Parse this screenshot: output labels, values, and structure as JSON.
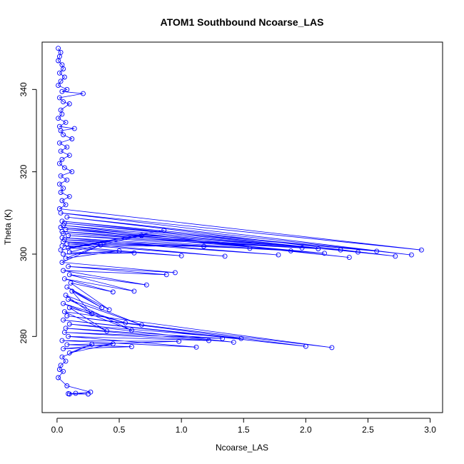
{
  "chart_data": {
    "type": "scatter",
    "title": "ATOM1 Southbound Ncoarse_LAS",
    "xlabel": "Ncoarse_LAS",
    "ylabel": "Theta (K)",
    "xlim": [
      -0.12,
      3.1
    ],
    "ylim": [
      261.5,
      351.5
    ],
    "x_ticks": [
      "0.0",
      "0.5",
      "1.0",
      "1.5",
      "2.0",
      "2.5",
      "3.0"
    ],
    "y_ticks": [
      "280",
      "300",
      "320",
      "340"
    ],
    "series_color": "#0000ff",
    "marker": "open-circle",
    "connected": true,
    "points": [
      [
        0.01,
        350
      ],
      [
        0.03,
        349
      ],
      [
        0.02,
        348
      ],
      [
        0.01,
        347
      ],
      [
        0.04,
        346
      ],
      [
        0.05,
        345
      ],
      [
        0.02,
        344
      ],
      [
        0.06,
        343
      ],
      [
        0.03,
        342
      ],
      [
        0.01,
        341
      ],
      [
        0.08,
        340
      ],
      [
        0.04,
        339.5
      ],
      [
        0.21,
        339
      ],
      [
        0.02,
        338
      ],
      [
        0.05,
        337
      ],
      [
        0.1,
        336.5
      ],
      [
        0.03,
        335
      ],
      [
        0.04,
        334
      ],
      [
        0.01,
        333
      ],
      [
        0.07,
        332
      ],
      [
        0.02,
        331
      ],
      [
        0.14,
        330.5
      ],
      [
        0.03,
        330
      ],
      [
        0.05,
        329
      ],
      [
        0.12,
        328
      ],
      [
        0.02,
        327
      ],
      [
        0.08,
        326
      ],
      [
        0.03,
        325
      ],
      [
        0.1,
        324
      ],
      [
        0.04,
        323
      ],
      [
        0.02,
        322
      ],
      [
        0.06,
        321
      ],
      [
        0.12,
        320
      ],
      [
        0.03,
        319
      ],
      [
        0.08,
        318
      ],
      [
        0.02,
        317
      ],
      [
        0.05,
        316
      ],
      [
        0.03,
        315
      ],
      [
        0.1,
        314
      ],
      [
        0.04,
        313
      ],
      [
        0.07,
        312
      ],
      [
        0.02,
        311
      ],
      [
        2.93,
        301
      ],
      [
        0.03,
        310
      ],
      [
        2.85,
        299.8
      ],
      [
        0.08,
        309
      ],
      [
        2.72,
        299.5
      ],
      [
        0.04,
        308
      ],
      [
        2.57,
        300.7
      ],
      [
        0.06,
        307.5
      ],
      [
        2.42,
        300.5
      ],
      [
        0.05,
        307
      ],
      [
        2.35,
        299.2
      ],
      [
        0.03,
        306.5
      ],
      [
        2.28,
        301
      ],
      [
        0.07,
        306
      ],
      [
        2.15,
        300.2
      ],
      [
        0.04,
        305.5
      ],
      [
        2.1,
        301.3
      ],
      [
        0.05,
        305
      ],
      [
        1.97,
        301.5
      ],
      [
        0.09,
        304.5
      ],
      [
        1.88,
        300.8
      ],
      [
        0.04,
        304
      ],
      [
        1.78,
        299.8
      ],
      [
        0.06,
        303.5
      ],
      [
        1.55,
        301.4
      ],
      [
        0.05,
        303
      ],
      [
        1.35,
        299.5
      ],
      [
        0.08,
        302.5
      ],
      [
        1.18,
        301.9
      ],
      [
        0.04,
        302
      ],
      [
        1.0,
        299.6
      ],
      [
        0.09,
        301.5
      ],
      [
        0.86,
        305.8
      ],
      [
        0.03,
        301
      ],
      [
        0.68,
        304.5
      ],
      [
        0.1,
        300.5
      ],
      [
        0.62,
        300.3
      ],
      [
        0.05,
        300
      ],
      [
        0.5,
        300.8
      ],
      [
        0.07,
        299
      ],
      [
        0.35,
        302.2
      ],
      [
        0.04,
        298
      ],
      [
        0.95,
        295.5
      ],
      [
        0.09,
        297
      ],
      [
        0.88,
        295
      ],
      [
        0.05,
        296
      ],
      [
        0.72,
        292.5
      ],
      [
        0.1,
        295
      ],
      [
        0.62,
        291
      ],
      [
        0.06,
        294
      ],
      [
        0.45,
        290.8
      ],
      [
        0.11,
        293
      ],
      [
        0.42,
        286.5
      ],
      [
        0.08,
        292
      ],
      [
        0.36,
        287
      ],
      [
        0.12,
        291
      ],
      [
        0.28,
        285.5
      ],
      [
        0.07,
        290
      ],
      [
        0.68,
        282.8
      ],
      [
        0.09,
        289
      ],
      [
        0.6,
        281.5
      ],
      [
        0.05,
        288
      ],
      [
        0.55,
        283.3
      ],
      [
        0.1,
        287
      ],
      [
        0.4,
        281.3
      ],
      [
        0.06,
        286
      ],
      [
        2.21,
        277.3
      ],
      [
        0.08,
        285
      ],
      [
        2.0,
        277.6
      ],
      [
        0.05,
        284
      ],
      [
        1.48,
        279.5
      ],
      [
        0.1,
        283
      ],
      [
        1.42,
        278.6
      ],
      [
        0.07,
        282
      ],
      [
        1.33,
        279.5
      ],
      [
        0.06,
        281
      ],
      [
        1.22,
        279
      ],
      [
        0.09,
        280
      ],
      [
        1.12,
        277.4
      ],
      [
        0.04,
        279
      ],
      [
        0.98,
        278.8
      ],
      [
        0.08,
        278
      ],
      [
        0.6,
        277.5
      ],
      [
        0.05,
        277
      ],
      [
        0.45,
        278.2
      ],
      [
        0.1,
        276
      ],
      [
        0.28,
        278.1
      ],
      [
        0.04,
        275
      ],
      [
        0.07,
        274
      ],
      [
        0.03,
        273
      ],
      [
        0.02,
        272
      ],
      [
        0.05,
        271.5
      ],
      [
        0.01,
        270
      ],
      [
        0.08,
        268
      ],
      [
        0.27,
        266.5
      ],
      [
        0.1,
        266
      ],
      [
        0.25,
        266
      ],
      [
        0.15,
        266.2
      ],
      [
        0.09,
        266.1
      ]
    ]
  }
}
